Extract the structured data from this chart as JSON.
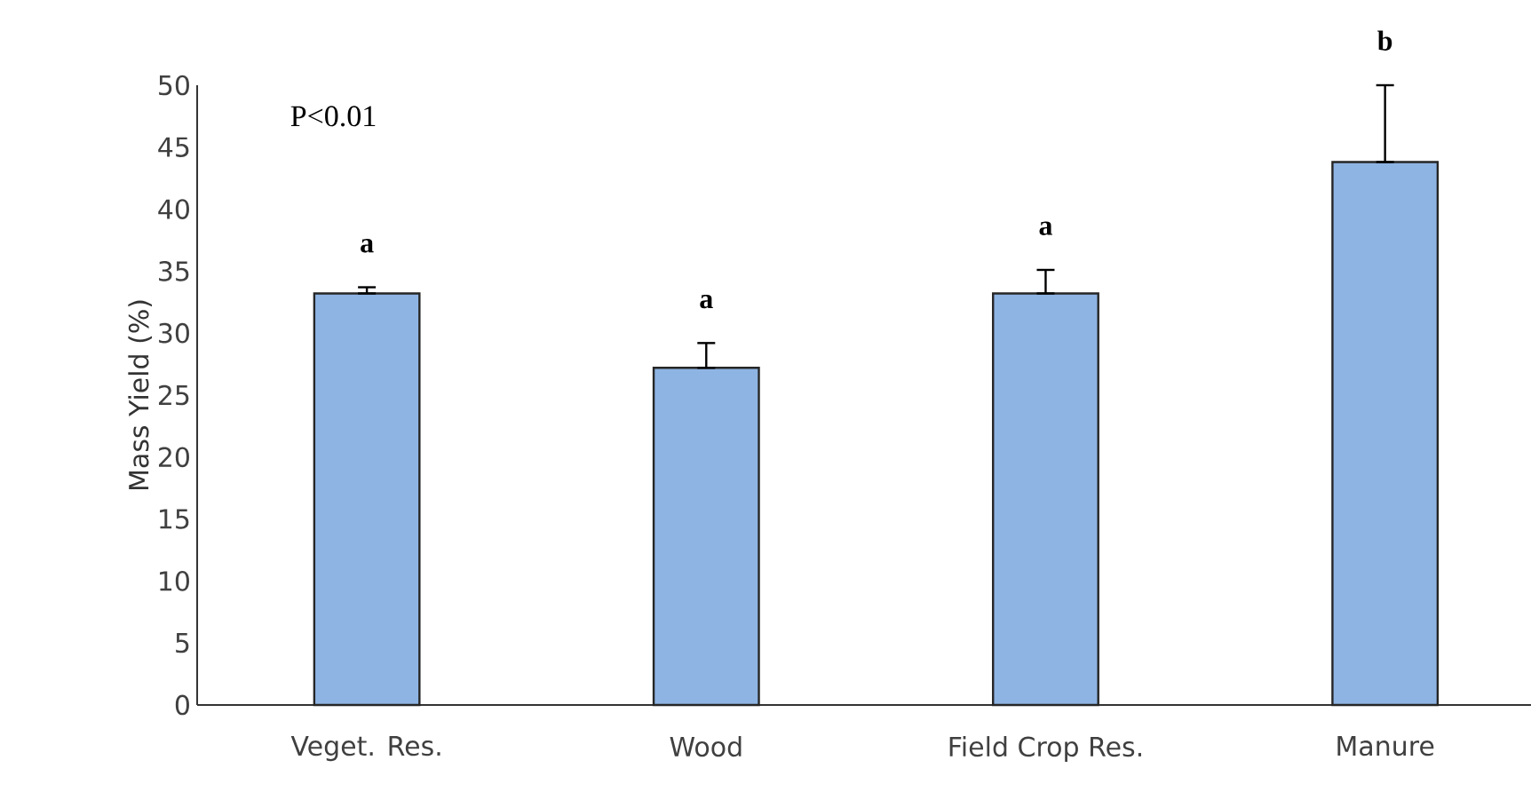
{
  "chart_data": {
    "type": "bar",
    "ylabel": "Mass Yield (%)",
    "categories": [
      "Veget. Res.",
      "Wood",
      "Field Crop Res.",
      "Manure"
    ],
    "values": [
      33.2,
      27.2,
      33.2,
      43.8
    ],
    "errors": [
      [
        33.2,
        33.7
      ],
      [
        27.2,
        29.2
      ],
      [
        33.2,
        35.1
      ],
      [
        43.8,
        50
      ]
    ],
    "color": "#8eb4e3",
    "ylim": [
      0,
      50
    ],
    "yticks": [
      0,
      5,
      10,
      15,
      20,
      25,
      30,
      35,
      40,
      45,
      50
    ],
    "grid": false,
    "annotations": [
      "P<0.01",
      {
        "text": "a",
        "x": "Veget. Res.",
        "y": 33.7
      },
      {
        "text": "a",
        "x": "Wood",
        "y": 29.2
      },
      {
        "text": "a",
        "x": "Field Crop Res.",
        "y": 35.1
      },
      {
        "text": "b",
        "x": "Manure",
        "y": 50
      }
    ]
  }
}
